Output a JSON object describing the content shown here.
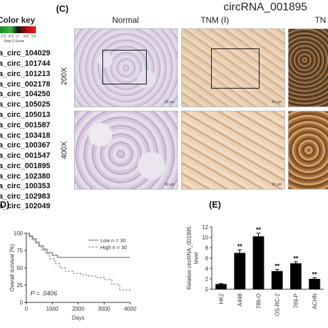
{
  "color_key": {
    "title": "Color key",
    "ticks": [
      "-1.5",
      "-0.5",
      "0",
      "0.5",
      "1.5"
    ],
    "subtitle": "Row Z-Score",
    "genes": [
      "a_circ_104029",
      "a_circ_101744",
      "a_circ_101213",
      "a_circ_002178",
      "a_circ_104250",
      "a_circ_105025",
      "a_circ_105013",
      "a_circ_001587",
      "a_circ_103418",
      "a_circ_100367",
      "a_circ_001547",
      "a_circ_001895",
      "a_circ_102380",
      "a_circ_100353",
      "a_circ_102983",
      "a_circ_102049"
    ]
  },
  "panel_c": {
    "label": "(C)",
    "title": "circRNA_001895",
    "columns": [
      "Normal",
      "TNM (Ⅰ)",
      "TN"
    ],
    "rows": [
      "200X",
      "400X"
    ],
    "scale_bar": "50 μm"
  },
  "panel_d": {
    "label": "D)",
    "annotation": "P = .0406"
  },
  "panel_e": {
    "label": "(E)"
  },
  "chart_data": [
    {
      "type": "line",
      "xlabel": "Days",
      "ylabel": "Overall survival (%)",
      "xlim": [
        0,
        4000
      ],
      "ylim": [
        0,
        100
      ],
      "xticks": [
        "0",
        "1000",
        "2000",
        "3000",
        "4000"
      ],
      "yticks": [
        "0",
        "25",
        "50",
        "75",
        "100"
      ],
      "legend": "top-right",
      "series": [
        {
          "name": "Low n = 30",
          "style": "solid",
          "color": "#555555",
          "x": [
            0,
            120,
            250,
            380,
            500,
            650,
            800,
            1000,
            1200,
            4000
          ],
          "y": [
            100,
            96,
            92,
            87,
            82,
            77,
            72,
            68,
            65,
            65
          ]
        },
        {
          "name": "High n = 30",
          "style": "dashed",
          "color": "#777777",
          "x": [
            0,
            100,
            220,
            350,
            480,
            600,
            750,
            900,
            1100,
            1300,
            1500,
            1800,
            2100,
            2400,
            2700,
            3000,
            3300,
            3600,
            4000
          ],
          "y": [
            100,
            95,
            90,
            85,
            80,
            75,
            70,
            63,
            56,
            50,
            45,
            42,
            40,
            38,
            36,
            33,
            26,
            18,
            15
          ]
        }
      ]
    },
    {
      "type": "bar",
      "ylabel": "Relative circRNA_001895 level",
      "ylim": [
        0,
        12
      ],
      "yticks": [
        "0",
        "2",
        "4",
        "6",
        "8",
        "10",
        "12"
      ],
      "categories": [
        "HK2",
        "A498",
        "786-O",
        "OS-RC-2",
        "769-P",
        "ACHN"
      ],
      "values": [
        1.0,
        7.0,
        10.2,
        3.5,
        5.0,
        2.0
      ],
      "errors": [
        0.1,
        0.6,
        0.6,
        0.3,
        0.3,
        0.2
      ],
      "significance": [
        "",
        "**",
        "**",
        "**",
        "**",
        "**"
      ],
      "bar_color": "#000000"
    }
  ]
}
